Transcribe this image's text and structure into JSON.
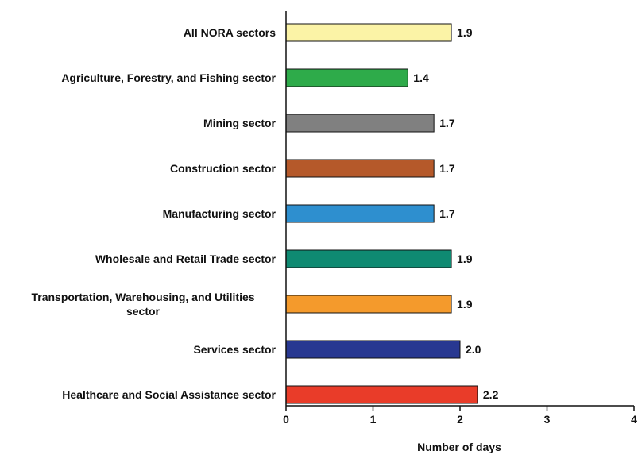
{
  "chart_data": {
    "type": "bar",
    "orientation": "horizontal",
    "title": "",
    "xlabel": "Number of days",
    "ylabel": "",
    "xlim": [
      0,
      4
    ],
    "xticks": [
      "0",
      "1",
      "2",
      "3",
      "4"
    ],
    "grid": false,
    "categories": [
      "All NORA sectors",
      "Agriculture, Forestry, and Fishing sector",
      "Mining sector",
      "Construction sector",
      "Manufacturing sector",
      "Wholesale and Retail Trade sector",
      "Transportation, Warehousing, and Utilities sector",
      "Services sector",
      "Healthcare and Social Assistance sector"
    ],
    "category_lines": [
      [
        "All NORA sectors"
      ],
      [
        "Agriculture, Forestry, and Fishing sector"
      ],
      [
        "Mining sector"
      ],
      [
        "Construction sector"
      ],
      [
        "Manufacturing sector"
      ],
      [
        "Wholesale and Retail Trade sector"
      ],
      [
        "Transportation, Warehousing, and Utilities",
        "sector"
      ],
      [
        "Services sector"
      ],
      [
        "Healthcare and Social Assistance sector"
      ]
    ],
    "values": [
      1.9,
      1.4,
      1.7,
      1.7,
      1.7,
      1.9,
      1.9,
      2.0,
      2.2
    ],
    "value_labels": [
      "1.9",
      "1.4",
      "1.7",
      "1.7",
      "1.7",
      "1.9",
      "1.9",
      "2.0",
      "2.2"
    ],
    "colors": [
      "#fbf3a6",
      "#2eab4a",
      "#808080",
      "#b5592a",
      "#2e8fcf",
      "#0f8a72",
      "#f49a2c",
      "#283891",
      "#e93c29"
    ]
  }
}
